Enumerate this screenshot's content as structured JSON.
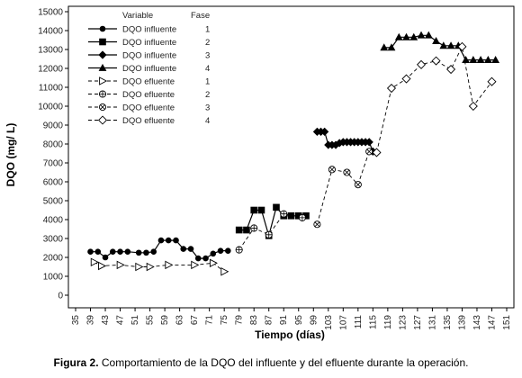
{
  "chart_data": {
    "type": "line",
    "xlabel": "Tiempo (días)",
    "ylabel": "DQO (mg/ L)",
    "xlim": [
      35,
      151
    ],
    "ylim": [
      0,
      15000
    ],
    "x_ticks": [
      35,
      39,
      43,
      47,
      51,
      55,
      59,
      63,
      67,
      71,
      75,
      79,
      83,
      87,
      91,
      95,
      99,
      103,
      107,
      111,
      115,
      119,
      123,
      127,
      131,
      135,
      139,
      143,
      147,
      151
    ],
    "y_ticks": [
      0,
      1000,
      2000,
      3000,
      4000,
      5000,
      6000,
      7000,
      8000,
      9000,
      10000,
      11000,
      12000,
      13000,
      14000,
      15000
    ],
    "grid": false,
    "legend": {
      "placement": "top-left",
      "header_variable": "Variable",
      "header_fase": "Fase"
    },
    "series": [
      {
        "name": "DQO influente",
        "fase": "1",
        "marker": "circle",
        "style": "solid",
        "x": [
          39,
          41,
          43,
          45,
          47,
          49,
          52,
          54,
          56,
          58,
          60,
          62,
          64,
          66,
          68,
          70,
          72,
          74,
          76
        ],
        "y": [
          2300,
          2300,
          2000,
          2300,
          2300,
          2300,
          2250,
          2250,
          2300,
          2900,
          2900,
          2900,
          2450,
          2450,
          1950,
          1950,
          2200,
          2350,
          2350
        ]
      },
      {
        "name": "DQO influente",
        "fase": "2",
        "marker": "square",
        "style": "solid",
        "x": [
          79,
          81,
          83,
          85,
          87,
          89,
          91,
          93,
          95,
          97
        ],
        "y": [
          3450,
          3450,
          4500,
          4500,
          3150,
          4650,
          4200,
          4200,
          4200,
          4200
        ]
      },
      {
        "name": "DQO influente",
        "fase": "3",
        "marker": "diamond",
        "style": "solid",
        "x": [
          100,
          101,
          102,
          103,
          104,
          105,
          106,
          107,
          108,
          109,
          110,
          111,
          112,
          113,
          114,
          115
        ],
        "y": [
          8650,
          8650,
          8650,
          7950,
          7950,
          7950,
          8050,
          8100,
          8100,
          8100,
          8100,
          8100,
          8100,
          8100,
          8100,
          7600
        ]
      },
      {
        "name": "DQO influente",
        "fase": "4",
        "marker": "triangle",
        "style": "solid",
        "x": [
          118,
          120,
          122,
          124,
          126,
          128,
          130,
          132,
          134,
          136,
          138,
          140,
          142,
          144,
          146,
          148
        ],
        "y": [
          13100,
          13100,
          13650,
          13650,
          13650,
          13750,
          13750,
          13450,
          13200,
          13200,
          13200,
          12450,
          12450,
          12450,
          12450,
          12450
        ]
      },
      {
        "name": "DQO efluente",
        "fase": "1",
        "marker": "triangle-right-open",
        "style": "dashed",
        "x": [
          40,
          42,
          47,
          52,
          55,
          60,
          67,
          72,
          75
        ],
        "y": [
          1750,
          1550,
          1600,
          1500,
          1500,
          1600,
          1600,
          1700,
          1250
        ]
      },
      {
        "name": "DQO efluente",
        "fase": "2",
        "marker": "circle-plus",
        "style": "dashed",
        "x": [
          79,
          83,
          87,
          91,
          96
        ],
        "y": [
          2400,
          3550,
          3200,
          4300,
          4100
        ]
      },
      {
        "name": "DQO efluente",
        "fase": "3",
        "marker": "circle-x",
        "style": "dashed",
        "x": [
          100,
          104,
          108,
          111,
          114
        ],
        "y": [
          3750,
          6650,
          6500,
          5850,
          7600
        ]
      },
      {
        "name": "DQO efluente",
        "fase": "4",
        "marker": "diamond-open",
        "style": "dashed",
        "x": [
          116,
          120,
          124,
          128,
          132,
          136,
          139,
          142,
          147
        ],
        "y": [
          7550,
          10950,
          11450,
          12200,
          12400,
          11950,
          13150,
          10000,
          11300
        ]
      }
    ]
  },
  "caption": {
    "label": "Figura 2.",
    "text": " Comportamiento de la DQO del influente y del efluente durante la operación."
  }
}
